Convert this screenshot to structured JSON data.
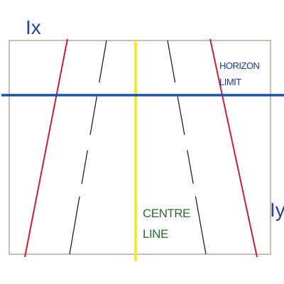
{
  "axes": {
    "x_label": "Ix",
    "y_label": "Iy"
  },
  "annotations": {
    "horizon": [
      "HORIZON",
      "LIMIT"
    ],
    "centre": [
      "CENTRE",
      "LINE"
    ]
  }
}
